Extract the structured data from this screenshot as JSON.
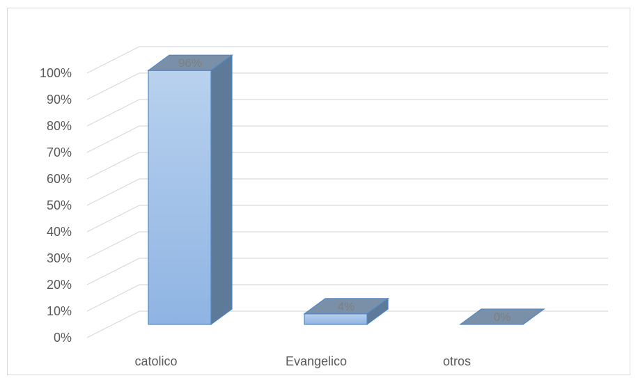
{
  "chart_data": {
    "type": "bar",
    "categories": [
      "catolico",
      "Evangelico",
      "otros"
    ],
    "values": [
      96,
      4,
      0
    ],
    "data_labels": [
      "96%",
      "4%",
      "0%"
    ],
    "yticks": [
      "0%",
      "10%",
      "20%",
      "30%",
      "40%",
      "50%",
      "60%",
      "70%",
      "80%",
      "90%",
      "100%"
    ],
    "ylim": [
      0,
      100
    ],
    "title": "",
    "xlabel": "",
    "ylabel": "",
    "grid": true,
    "legend": "none",
    "style": "3d-column",
    "colors": {
      "bar_front_top": "#b8d1ee",
      "bar_front_bottom": "#8fb4e3",
      "bar_edge": "#4f86c6",
      "bar_side": "#5d7b99",
      "bar_top": "#7a90a8",
      "grid": "#d9d9d9",
      "text": "#595959",
      "label": "#7f7f7f"
    }
  }
}
